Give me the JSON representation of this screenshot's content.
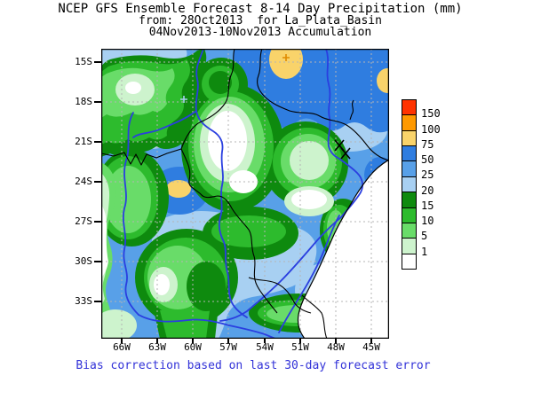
{
  "title": {
    "line1": "NCEP GFS Ensemble Forecast 8-14 Day Precipitation (mm)",
    "line2": "from: 28Oct2013  for La_Plata_Basin",
    "line3": "04Nov2013-10Nov2013 Accumulation"
  },
  "axes": {
    "y_tick_labels": [
      "15S",
      "18S",
      "21S",
      "24S",
      "27S",
      "30S",
      "33S"
    ],
    "x_tick_labels": [
      "66W",
      "63W",
      "60W",
      "57W",
      "54W",
      "51W",
      "48W",
      "45W"
    ]
  },
  "legend": {
    "units": "mm",
    "levels": [
      "150",
      "100",
      "75",
      "50",
      "25",
      "20",
      "15",
      "10",
      "5",
      "1"
    ],
    "cell_colors": [
      "#FF3300",
      "#FF9900",
      "#F9D36A",
      "#2F7DE0",
      "#58A0E8",
      "#A8D0F2",
      "#0E8A0E",
      "#2DBB2D",
      "#69DC69",
      "#CDF3CD",
      "#FFFFFF"
    ]
  },
  "caption": {
    "text": "Bias correction based on last 30-day forecast error",
    "color": "#3232D8"
  }
}
